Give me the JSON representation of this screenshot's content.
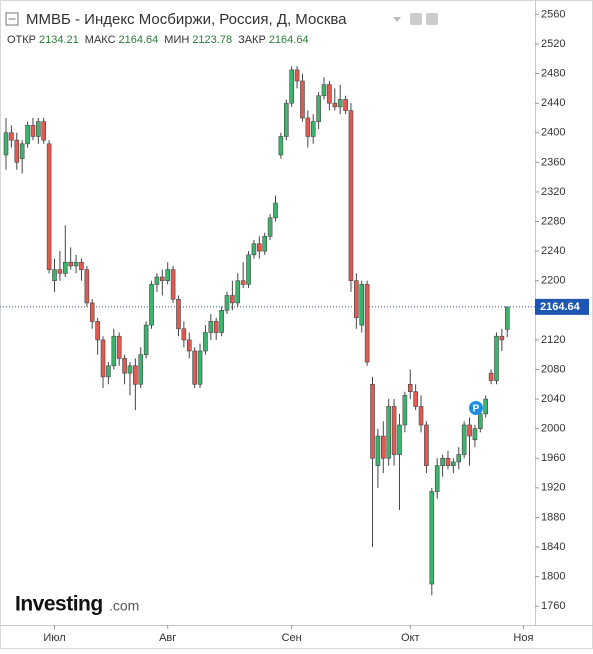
{
  "chart_data": {
    "type": "candlestick",
    "title": "ММВБ - Индекс Мосбиржи, Россия, Д, Москва",
    "info": [
      {
        "label": "ОТКР",
        "value": 2134.21
      },
      {
        "label": "МАКС",
        "value": 2164.64
      },
      {
        "label": "МИН",
        "value": 2123.78
      },
      {
        "label": "ЗАКР",
        "value": 2164.64
      }
    ],
    "categories": [
      null,
      null,
      null,
      null,
      null,
      null,
      null,
      null,
      null,
      "Июл",
      null,
      null,
      null,
      null,
      null,
      null,
      null,
      null,
      null,
      null,
      null,
      null,
      null,
      null,
      null,
      null,
      null,
      null,
      null,
      null,
      "Авг",
      null,
      null,
      null,
      null,
      null,
      null,
      null,
      null,
      null,
      null,
      null,
      null,
      null,
      null,
      null,
      null,
      null,
      null,
      null,
      null,
      null,
      null,
      "Сен",
      null,
      null,
      null,
      null,
      null,
      null,
      null,
      null,
      null,
      null,
      null,
      null,
      null,
      null,
      null,
      null,
      null,
      null,
      null,
      null,
      null,
      "Окт",
      null,
      null,
      null,
      null,
      null,
      null,
      null,
      null,
      null,
      null,
      null,
      null,
      null,
      null,
      null,
      null,
      null,
      null,
      null,
      null,
      "Ноя"
    ],
    "open": [
      2370,
      2400,
      2390,
      2365,
      2385,
      2410,
      2395,
      2415,
      2385,
      2200,
      2215,
      2210,
      2225,
      2220,
      2225,
      2215,
      2170,
      2145,
      2120,
      2070,
      2085,
      2125,
      2095,
      2075,
      2085,
      2060,
      2100,
      2140,
      2195,
      2205,
      2200,
      2215,
      2175,
      2135,
      2120,
      2105,
      2060,
      2105,
      2130,
      2145,
      2130,
      2160,
      2180,
      2170,
      2200,
      2195,
      2235,
      2250,
      2240,
      2260,
      2285,
      2370,
      2395,
      2440,
      2485,
      2470,
      2420,
      2395,
      2415,
      2450,
      2465,
      2440,
      2435,
      2445,
      2430,
      2200,
      2140,
      2195,
      2060,
      1950,
      1990,
      1960,
      2030,
      1965,
      2005,
      2060,
      2050,
      2030,
      2005,
      1790,
      1915,
      1950,
      1960,
      1950,
      1955,
      1965,
      2005,
      1985,
      2000,
      2020,
      2075,
      2065,
      2125,
      2134.21,
      null,
      null,
      null
    ],
    "high": [
      2420,
      2410,
      2400,
      2390,
      2415,
      2420,
      2420,
      2420,
      2390,
      2230,
      2240,
      2275,
      2245,
      2235,
      2230,
      2220,
      2175,
      2150,
      2125,
      2090,
      2135,
      2130,
      2100,
      2090,
      2095,
      2110,
      2145,
      2200,
      2210,
      2215,
      2225,
      2220,
      2180,
      2145,
      2130,
      2110,
      2115,
      2140,
      2155,
      2150,
      2165,
      2185,
      2200,
      2210,
      2225,
      2240,
      2255,
      2260,
      2265,
      2290,
      2315,
      2400,
      2445,
      2490,
      2490,
      2480,
      2430,
      2425,
      2455,
      2475,
      2470,
      2460,
      2465,
      2450,
      2440,
      2210,
      2200,
      2200,
      2070,
      2000,
      2010,
      2040,
      2040,
      2020,
      2050,
      2080,
      2060,
      2045,
      2010,
      1920,
      1960,
      1965,
      1970,
      1960,
      1975,
      2010,
      2015,
      2005,
      2025,
      2045,
      2080,
      2130,
      2135,
      2164.64,
      null,
      null,
      null
    ],
    "low": [
      2350,
      2380,
      2350,
      2345,
      2380,
      2390,
      2385,
      2385,
      2210,
      2185,
      2200,
      2205,
      2215,
      2210,
      2200,
      2165,
      2135,
      2100,
      2055,
      2060,
      2080,
      2085,
      2060,
      2045,
      2025,
      2055,
      2095,
      2135,
      2185,
      2180,
      2195,
      2170,
      2125,
      2110,
      2095,
      2055,
      2055,
      2100,
      2120,
      2120,
      2125,
      2155,
      2160,
      2165,
      2190,
      2190,
      2230,
      2230,
      2235,
      2255,
      2280,
      2365,
      2390,
      2435,
      2460,
      2415,
      2380,
      2385,
      2405,
      2445,
      2430,
      2430,
      2425,
      2425,
      2185,
      2135,
      2130,
      2085,
      1840,
      1920,
      1940,
      1950,
      1950,
      1890,
      1995,
      2040,
      2025,
      1995,
      1940,
      1775,
      1905,
      1935,
      1945,
      1940,
      1945,
      1960,
      1950,
      1975,
      1995,
      2015,
      2060,
      2060,
      2105,
      2123.78,
      null,
      null,
      null
    ],
    "close": [
      2400,
      2390,
      2360,
      2385,
      2410,
      2395,
      2415,
      2390,
      2215,
      2215,
      2210,
      2225,
      2220,
      2225,
      2215,
      2170,
      2145,
      2120,
      2070,
      2085,
      2125,
      2095,
      2075,
      2085,
      2060,
      2100,
      2140,
      2195,
      2205,
      2200,
      2215,
      2175,
      2135,
      2120,
      2105,
      2060,
      2105,
      2130,
      2145,
      2130,
      2160,
      2180,
      2170,
      2200,
      2195,
      2235,
      2250,
      2240,
      2260,
      2285,
      2305,
      2395,
      2440,
      2485,
      2470,
      2420,
      2395,
      2415,
      2450,
      2465,
      2440,
      2435,
      2445,
      2430,
      2200,
      2150,
      2195,
      2090,
      1960,
      1990,
      1960,
      2030,
      1965,
      2005,
      2045,
      2050,
      2030,
      2005,
      1950,
      1915,
      1950,
      1960,
      1950,
      1955,
      1965,
      2005,
      1990,
      2000,
      2020,
      2040,
      2065,
      2125,
      2120,
      2164.64,
      null,
      null,
      null
    ],
    "up_color": "#3cb46e",
    "down_color": "#e05a52",
    "last_price": 2164.64,
    "marker_label": "P",
    "ylim": [
      1740,
      2570
    ],
    "yticks": [
      1760,
      1800,
      1840,
      1880,
      1920,
      1960,
      2000,
      2040,
      2080,
      2120,
      2160,
      2200,
      2240,
      2280,
      2320,
      2360,
      2400,
      2440,
      2480,
      2520,
      2560
    ]
  },
  "logo": {
    "name": "Investing",
    "suffix": ".com"
  }
}
